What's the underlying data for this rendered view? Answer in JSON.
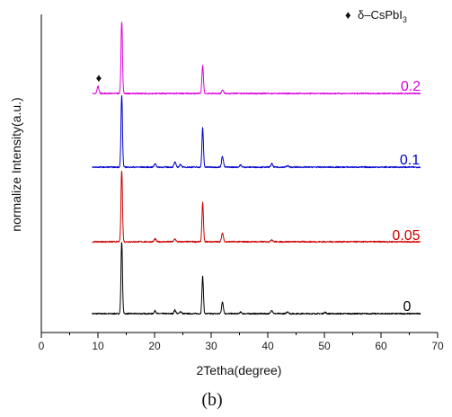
{
  "chart_data": {
    "type": "line",
    "xlabel": "2Tetha(degree)",
    "ylabel": "normalize Intensity(a.u.)",
    "xlim": [
      0,
      70
    ],
    "x_ticks": [
      0,
      10,
      20,
      30,
      40,
      50,
      60,
      70
    ],
    "x_tick_labels": [
      "0",
      "10",
      "20",
      "30",
      "40",
      "50",
      "60",
      "70"
    ],
    "y_ticks_shown": false,
    "grid": false,
    "caption": "(b)",
    "legend": {
      "position": "top-right",
      "marker": "♦",
      "text_main": "δ–CsPbI",
      "text_sub": "3"
    },
    "x_range": [
      9,
      67
    ],
    "series": [
      {
        "name": "0",
        "color": "#000000",
        "baseline": 0,
        "peaks": [
          {
            "x": 14.2,
            "h": 1.0
          },
          {
            "x": 20.1,
            "h": 0.04
          },
          {
            "x": 23.6,
            "h": 0.05
          },
          {
            "x": 24.6,
            "h": 0.03
          },
          {
            "x": 28.5,
            "h": 0.52
          },
          {
            "x": 32.0,
            "h": 0.16
          },
          {
            "x": 35.2,
            "h": 0.02
          },
          {
            "x": 40.7,
            "h": 0.05
          },
          {
            "x": 43.5,
            "h": 0.03
          },
          {
            "x": 50.1,
            "h": 0.02
          }
        ]
      },
      {
        "name": "0.05",
        "color": "#cc0000",
        "baseline": 1,
        "peaks": [
          {
            "x": 14.2,
            "h": 1.0
          },
          {
            "x": 20.1,
            "h": 0.04
          },
          {
            "x": 23.6,
            "h": 0.04
          },
          {
            "x": 28.5,
            "h": 0.55
          },
          {
            "x": 32.0,
            "h": 0.12
          },
          {
            "x": 40.7,
            "h": 0.03
          }
        ]
      },
      {
        "name": "0.1",
        "color": "#0000cc",
        "baseline": 2,
        "peaks": [
          {
            "x": 14.2,
            "h": 1.0
          },
          {
            "x": 20.1,
            "h": 0.05
          },
          {
            "x": 23.6,
            "h": 0.07
          },
          {
            "x": 24.6,
            "h": 0.04
          },
          {
            "x": 28.5,
            "h": 0.55
          },
          {
            "x": 32.0,
            "h": 0.15
          },
          {
            "x": 35.2,
            "h": 0.03
          },
          {
            "x": 40.7,
            "h": 0.05
          },
          {
            "x": 43.5,
            "h": 0.02
          }
        ]
      },
      {
        "name": "0.2",
        "color": "#dd00dd",
        "baseline": 3,
        "peaks": [
          {
            "x": 10.0,
            "h": 0.1
          },
          {
            "x": 14.2,
            "h": 1.0
          },
          {
            "x": 28.5,
            "h": 0.4
          },
          {
            "x": 32.0,
            "h": 0.05
          }
        ]
      }
    ],
    "marker_annotation": {
      "x": 10.0,
      "series": "0.2",
      "symbol": "♦"
    }
  }
}
